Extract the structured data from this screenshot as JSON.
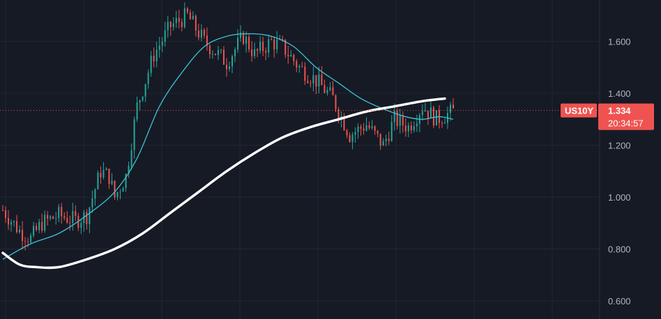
{
  "chart_data": {
    "type": "line",
    "symbol": "US10Y",
    "last_price": "1.334",
    "countdown": "20:34:57",
    "y_ticks": [
      "1.600",
      "1.400",
      "1.200",
      "1.000",
      "0.800",
      "0.600"
    ],
    "y_tick_values": [
      1.6,
      1.4,
      1.2,
      1.0,
      0.8,
      0.6
    ],
    "ylim": [
      0.53,
      1.76
    ],
    "grid": true,
    "colors": {
      "background": "#161a25",
      "grid": "#232733",
      "up": "#26a69a",
      "down": "#ef5350",
      "fast_ma": "#3cc3d4",
      "slow_ma": "#ffffff",
      "price_line": "#ef5350",
      "tag_bg": "#ef5350"
    },
    "candles": {
      "count": 162,
      "keyframes": [
        [
          0,
          0.95
        ],
        [
          6,
          0.87
        ],
        [
          10,
          0.84
        ],
        [
          14,
          0.9
        ],
        [
          20,
          0.93
        ],
        [
          26,
          0.91
        ],
        [
          30,
          0.93
        ],
        [
          35,
          1.1
        ],
        [
          38,
          1.08
        ],
        [
          40,
          1.0
        ],
        [
          44,
          1.08
        ],
        [
          48,
          1.35
        ],
        [
          54,
          1.55
        ],
        [
          60,
          1.66
        ],
        [
          66,
          1.7
        ],
        [
          72,
          1.6
        ],
        [
          80,
          1.52
        ],
        [
          86,
          1.62
        ],
        [
          90,
          1.55
        ],
        [
          96,
          1.6
        ],
        [
          100,
          1.58
        ],
        [
          106,
          1.5
        ],
        [
          112,
          1.45
        ],
        [
          118,
          1.38
        ],
        [
          124,
          1.24
        ],
        [
          130,
          1.28
        ],
        [
          136,
          1.2
        ],
        [
          140,
          1.3
        ],
        [
          145,
          1.27
        ],
        [
          150,
          1.35
        ],
        [
          155,
          1.3
        ],
        [
          161,
          1.33
        ]
      ]
    },
    "fast_ma": {
      "name": "",
      "points": [
        [
          0,
          0.76
        ],
        [
          10,
          0.82
        ],
        [
          20,
          0.86
        ],
        [
          30,
          0.93
        ],
        [
          40,
          1.02
        ],
        [
          48,
          1.15
        ],
        [
          56,
          1.35
        ],
        [
          64,
          1.48
        ],
        [
          72,
          1.58
        ],
        [
          80,
          1.62
        ],
        [
          88,
          1.63
        ],
        [
          96,
          1.62
        ],
        [
          104,
          1.58
        ],
        [
          112,
          1.5
        ],
        [
          120,
          1.44
        ],
        [
          128,
          1.38
        ],
        [
          136,
          1.34
        ],
        [
          144,
          1.31
        ],
        [
          150,
          1.3
        ],
        [
          156,
          1.31
        ],
        [
          161,
          1.3
        ]
      ]
    },
    "slow_ma": {
      "name": "",
      "points": [
        [
          0,
          0.785
        ],
        [
          6,
          0.74
        ],
        [
          12,
          0.73
        ],
        [
          20,
          0.73
        ],
        [
          30,
          0.76
        ],
        [
          40,
          0.8
        ],
        [
          50,
          0.86
        ],
        [
          60,
          0.94
        ],
        [
          70,
          1.02
        ],
        [
          80,
          1.1
        ],
        [
          90,
          1.17
        ],
        [
          100,
          1.23
        ],
        [
          110,
          1.27
        ],
        [
          120,
          1.3
        ],
        [
          130,
          1.33
        ],
        [
          140,
          1.35
        ],
        [
          150,
          1.37
        ],
        [
          158,
          1.38
        ]
      ]
    }
  }
}
